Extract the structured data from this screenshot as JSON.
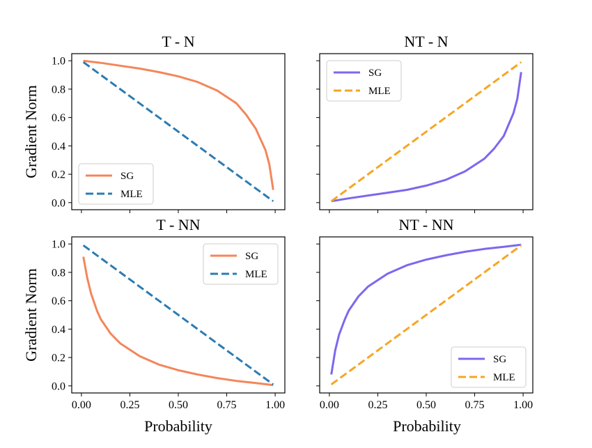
{
  "figure": {
    "ylabel": "Gradient Norm",
    "xlabel": "Probability",
    "colors": {
      "sg_tn": "#f4865a",
      "sg_nt": "#7b68ee",
      "mle_tn": "#2b7bb3",
      "mle_nt": "#f5a623"
    }
  },
  "chart_data": [
    {
      "type": "line",
      "title": "T - N",
      "xlabel": "",
      "ylabel": "Gradient Norm",
      "xlim": [
        -0.05,
        1.05
      ],
      "ylim": [
        -0.05,
        1.05
      ],
      "yticks": [
        "0.0",
        "0.2",
        "0.4",
        "0.6",
        "0.8",
        "1.0"
      ],
      "xticks": [
        "",
        "",
        "",
        "",
        ""
      ],
      "legend": "bottom-left",
      "series": [
        {
          "name": "SG",
          "color": "#f4865a",
          "dash": "solid",
          "x": [
            0.01,
            0.1,
            0.2,
            0.3,
            0.4,
            0.5,
            0.6,
            0.7,
            0.8,
            0.85,
            0.9,
            0.95,
            0.97,
            0.99
          ],
          "y": [
            1.0,
            0.985,
            0.965,
            0.945,
            0.92,
            0.89,
            0.85,
            0.79,
            0.7,
            0.62,
            0.52,
            0.37,
            0.27,
            0.09
          ]
        },
        {
          "name": "MLE",
          "color": "#2b7bb3",
          "dash": "dashed",
          "x": [
            0.01,
            0.99
          ],
          "y": [
            0.99,
            0.01
          ]
        }
      ]
    },
    {
      "type": "line",
      "title": "NT - N",
      "xlabel": "",
      "ylabel": "",
      "xlim": [
        -0.05,
        1.05
      ],
      "ylim": [
        -0.05,
        1.05
      ],
      "yticks": [
        "",
        "",
        "",
        "",
        "",
        ""
      ],
      "xticks": [
        "",
        "",
        "",
        "",
        ""
      ],
      "legend": "top-left",
      "series": [
        {
          "name": "SG",
          "color": "#7b68ee",
          "dash": "solid",
          "x": [
            0.01,
            0.1,
            0.2,
            0.3,
            0.4,
            0.5,
            0.6,
            0.7,
            0.8,
            0.85,
            0.9,
            0.95,
            0.97,
            0.99
          ],
          "y": [
            0.01,
            0.03,
            0.05,
            0.07,
            0.09,
            0.12,
            0.16,
            0.22,
            0.31,
            0.38,
            0.47,
            0.63,
            0.73,
            0.92
          ]
        },
        {
          "name": "MLE",
          "color": "#f5a623",
          "dash": "dashed",
          "x": [
            0.01,
            0.99
          ],
          "y": [
            0.01,
            0.99
          ]
        }
      ]
    },
    {
      "type": "line",
      "title": "T - NN",
      "xlabel": "Probability",
      "ylabel": "Gradient Norm",
      "xlim": [
        -0.05,
        1.05
      ],
      "ylim": [
        -0.05,
        1.05
      ],
      "yticks": [
        "0.0",
        "0.2",
        "0.4",
        "0.6",
        "0.8",
        "1.0"
      ],
      "xticks": [
        "0.00",
        "0.25",
        "0.50",
        "0.75",
        "1.00"
      ],
      "legend": "top-right",
      "series": [
        {
          "name": "SG",
          "color": "#f4865a",
          "dash": "solid",
          "x": [
            0.01,
            0.03,
            0.05,
            0.08,
            0.1,
            0.15,
            0.2,
            0.3,
            0.4,
            0.5,
            0.6,
            0.7,
            0.8,
            0.9,
            0.99
          ],
          "y": [
            0.91,
            0.76,
            0.65,
            0.53,
            0.47,
            0.37,
            0.3,
            0.21,
            0.15,
            0.11,
            0.08,
            0.055,
            0.035,
            0.02,
            0.005
          ]
        },
        {
          "name": "MLE",
          "color": "#2b7bb3",
          "dash": "dashed",
          "x": [
            0.01,
            0.99
          ],
          "y": [
            0.99,
            0.01
          ]
        }
      ]
    },
    {
      "type": "line",
      "title": "NT - NN",
      "xlabel": "Probability",
      "ylabel": "",
      "xlim": [
        -0.05,
        1.05
      ],
      "ylim": [
        -0.05,
        1.05
      ],
      "yticks": [
        "",
        "",
        "",
        "",
        "",
        ""
      ],
      "xticks": [
        "0.00",
        "0.25",
        "0.50",
        "0.75",
        "1.00"
      ],
      "legend": "bottom-right",
      "series": [
        {
          "name": "SG",
          "color": "#7b68ee",
          "dash": "solid",
          "x": [
            0.01,
            0.03,
            0.05,
            0.08,
            0.1,
            0.15,
            0.2,
            0.3,
            0.4,
            0.5,
            0.6,
            0.7,
            0.8,
            0.9,
            0.99
          ],
          "y": [
            0.08,
            0.25,
            0.36,
            0.47,
            0.53,
            0.63,
            0.7,
            0.79,
            0.85,
            0.89,
            0.92,
            0.945,
            0.965,
            0.98,
            0.995
          ]
        },
        {
          "name": "MLE",
          "color": "#f5a623",
          "dash": "dashed",
          "x": [
            0.01,
            0.99
          ],
          "y": [
            0.01,
            0.99
          ]
        }
      ]
    }
  ]
}
